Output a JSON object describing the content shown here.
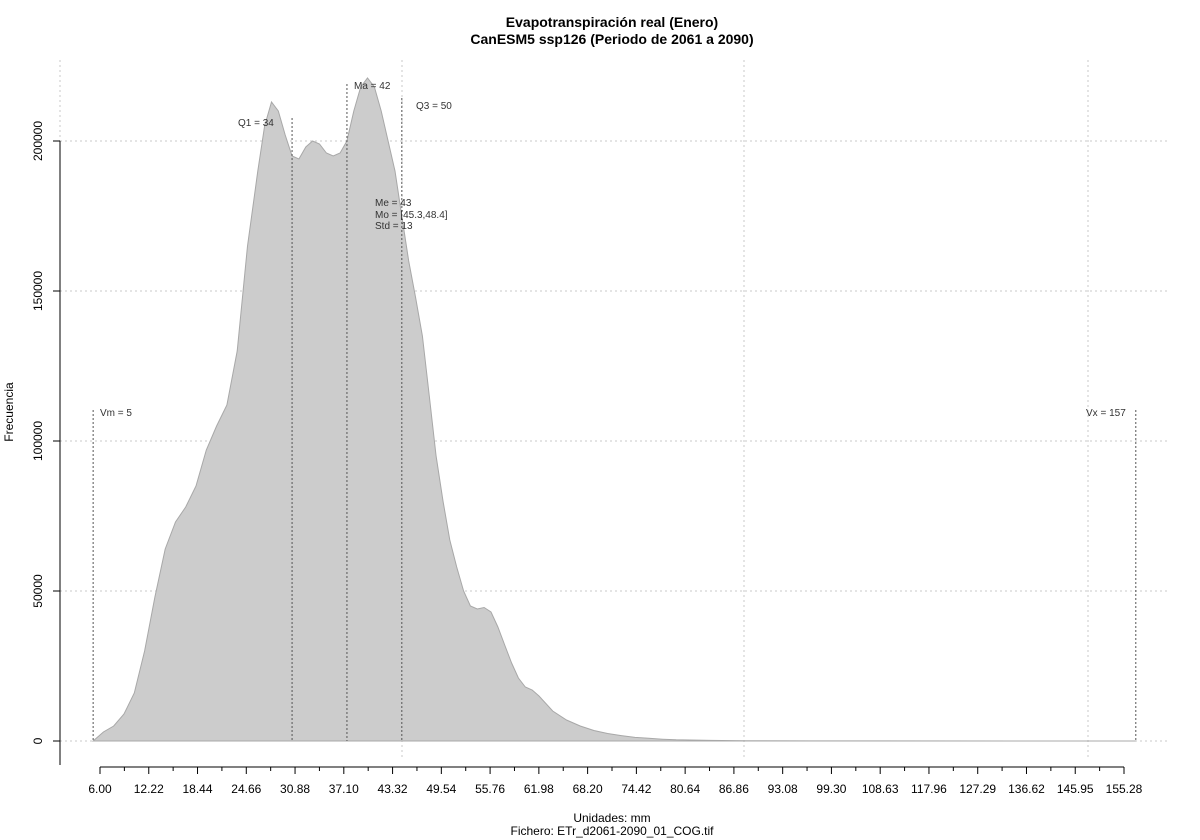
{
  "chart_data": {
    "type": "area",
    "title": "Evapotranspiración real (Enero)",
    "subtitle": "CanESM5 ssp126 (Periodo de 2061 a 2090)",
    "xlabel": "Unidades: mm",
    "xlabel2": "Fichero: ETr_d2061-2090_01_COG.tif",
    "ylabel": "Frecuencia",
    "xlim": [
      6.0,
      155.28
    ],
    "ylim": [
      0,
      220000
    ],
    "grid": true,
    "x_ticks": [
      "6.00",
      "12.22",
      "18.44",
      "24.66",
      "30.88",
      "37.10",
      "43.32",
      "49.54",
      "55.76",
      "61.98",
      "68.20",
      "74.42",
      "80.64",
      "86.86",
      "93.08",
      "99.30",
      "108.63",
      "117.96",
      "127.29",
      "136.62",
      "145.95",
      "155.28"
    ],
    "y_ticks": [
      "0",
      "50000",
      "100000",
      "150000",
      "200000"
    ],
    "annotations": {
      "vm": "Vm = 5",
      "vx": "Vx = 157",
      "q1": "Q1 = 34",
      "ma": "Ma = 42",
      "q3": "Q3 = 50",
      "me": "Me = 43",
      "mo": "Mo = [45.3,48.4]",
      "std": "Std = 13"
    },
    "markers": {
      "vm": 5,
      "q1": 34,
      "ma": 42,
      "q3": 50,
      "vx": 157
    },
    "x": [
      5,
      6.5,
      8,
      9.5,
      11,
      12.5,
      14,
      15.5,
      17,
      18.5,
      20,
      21.5,
      23,
      24.5,
      26,
      27.5,
      29,
      30,
      31,
      32,
      33,
      34,
      35,
      36,
      37,
      38,
      39,
      40,
      41,
      42,
      43,
      44,
      45,
      46,
      47,
      48,
      49,
      50,
      51,
      52,
      53,
      54,
      55,
      56,
      57,
      58,
      59,
      60,
      61,
      62,
      63,
      64,
      65,
      66,
      67,
      68,
      69,
      70,
      72,
      74,
      76,
      78,
      80,
      82,
      84,
      86,
      88,
      90,
      95,
      100,
      110,
      120,
      140,
      157
    ],
    "values": [
      0,
      3000,
      5000,
      9000,
      16000,
      30000,
      48000,
      64000,
      73000,
      78000,
      85000,
      97000,
      105000,
      112000,
      130000,
      165000,
      190000,
      205000,
      213000,
      210000,
      202000,
      195000,
      194000,
      198000,
      200000,
      199000,
      196000,
      195000,
      196000,
      200000,
      210000,
      218000,
      221000,
      218000,
      210000,
      200000,
      190000,
      175000,
      160000,
      148000,
      135000,
      115000,
      95000,
      80000,
      67000,
      58000,
      50000,
      45000,
      44000,
      44500,
      43000,
      38000,
      32000,
      26000,
      21000,
      18000,
      17000,
      15000,
      10000,
      7000,
      5000,
      3500,
      2500,
      1800,
      1200,
      900,
      600,
      400,
      200,
      100,
      50,
      20,
      10,
      0
    ]
  }
}
